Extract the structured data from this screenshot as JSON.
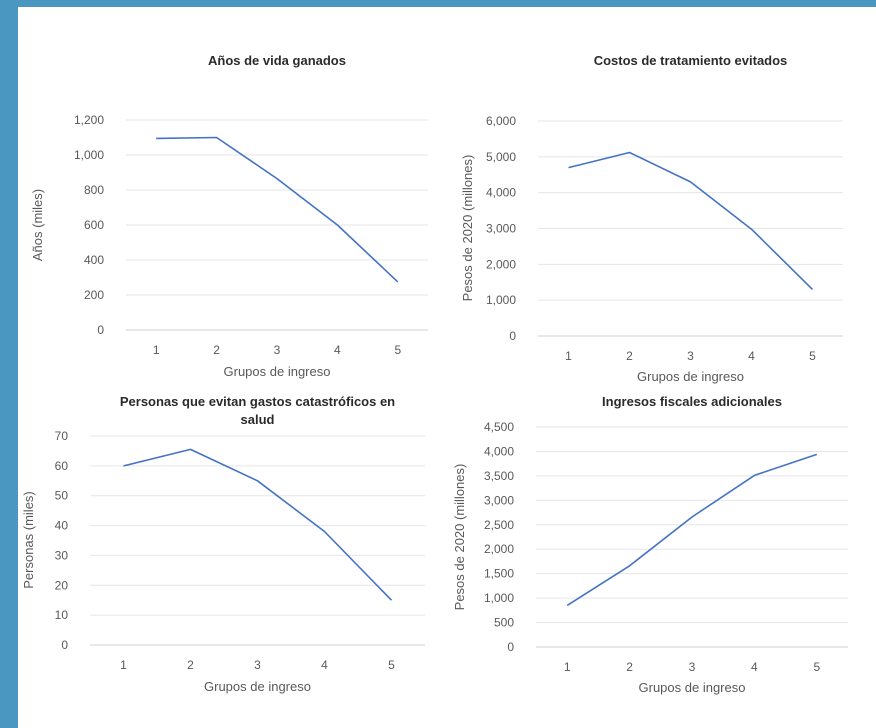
{
  "colors": {
    "frame": "#4a98c1",
    "series": "#4472c4"
  },
  "chart_data": [
    {
      "type": "line",
      "title": "Años de vida ganados",
      "xlabel": "Grupos de ingreso",
      "ylabel": "Años (miles)",
      "x": [
        1,
        2,
        3,
        4,
        5
      ],
      "series": [
        {
          "values": [
            1095,
            1100,
            865,
            600,
            275
          ]
        }
      ],
      "ylim": [
        0,
        1200
      ],
      "yticks": [
        "0",
        "200",
        "400",
        "600",
        "800",
        "1,000",
        "1,200"
      ],
      "grid": true
    },
    {
      "type": "line",
      "title": "Costos de tratamiento evitados",
      "xlabel": "Grupos de ingreso",
      "ylabel": "Pesos de 2020 (millones)",
      "x": [
        1,
        2,
        3,
        4,
        5
      ],
      "series": [
        {
          "values": [
            4700,
            5120,
            4300,
            2980,
            1300
          ]
        }
      ],
      "ylim": [
        0,
        6000
      ],
      "yticks": [
        "0",
        "1,000",
        "2,000",
        "3,000",
        "4,000",
        "5,000",
        "6,000"
      ],
      "grid": true
    },
    {
      "type": "line",
      "title": "Personas que evitan gastos catastróficos en salud",
      "title_lines": [
        "Personas que evitan gastos catastróficos en",
        "salud"
      ],
      "xlabel": "Grupos de ingreso",
      "ylabel": "Personas (miles)",
      "x": [
        1,
        2,
        3,
        4,
        5
      ],
      "series": [
        {
          "values": [
            60,
            65.5,
            55,
            38,
            15
          ]
        }
      ],
      "ylim": [
        0,
        70
      ],
      "yticks": [
        "0",
        "10",
        "20",
        "30",
        "40",
        "50",
        "60",
        "70"
      ],
      "grid": true
    },
    {
      "type": "line",
      "title": "Ingresos fiscales adicionales",
      "xlabel": "Grupos de ingreso",
      "ylabel": "Pesos de 2020 (millones)",
      "x": [
        1,
        2,
        3,
        4,
        5
      ],
      "series": [
        {
          "values": [
            850,
            1660,
            2660,
            3510,
            3940
          ]
        }
      ],
      "ylim": [
        0,
        4500
      ],
      "yticks": [
        "0",
        "500",
        "1,000",
        "1,500",
        "2,000",
        "2,500",
        "3,000",
        "3,500",
        "4,000",
        "4,500"
      ],
      "grid": true
    }
  ]
}
